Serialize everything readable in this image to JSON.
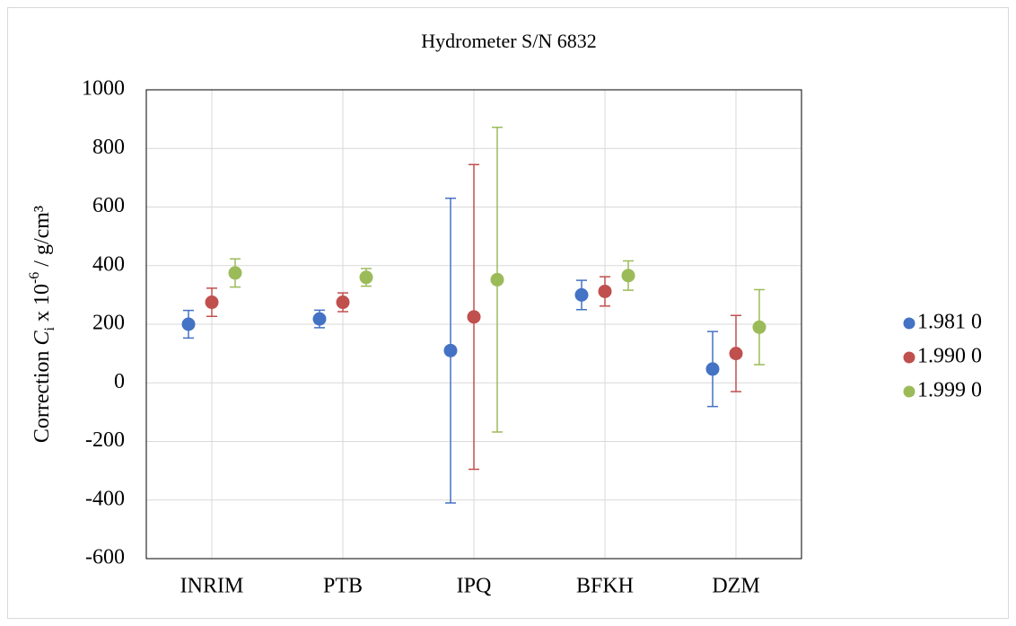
{
  "chart_data": {
    "type": "errorbar",
    "title": "Hydrometer S/N 6832",
    "ylabel_parts": [
      "Correction ",
      "C",
      "i",
      " x 10",
      "-6",
      " / g/cm³"
    ],
    "categories": [
      "INRIM",
      "PTB",
      "IPQ",
      "BFKH",
      "DZM"
    ],
    "series": [
      {
        "name": "1.981 0",
        "color": "#4472c4",
        "values": [
          200,
          218,
          110,
          300,
          47
        ],
        "errors": [
          47,
          30,
          520,
          50,
          128
        ]
      },
      {
        "name": "1.990 0",
        "color": "#c0504d",
        "values": [
          275,
          275,
          225,
          312,
          100
        ],
        "errors": [
          48,
          32,
          520,
          50,
          130
        ]
      },
      {
        "name": "1.999 0",
        "color": "#9bbb59",
        "values": [
          375,
          360,
          352,
          366,
          190
        ],
        "errors": [
          48,
          30,
          520,
          50,
          128
        ]
      }
    ],
    "ylim": [
      -600,
      1000
    ],
    "yticks": [
      -600,
      -400,
      -200,
      0,
      200,
      400,
      600,
      800,
      1000
    ],
    "grid": true,
    "legend": "right"
  }
}
